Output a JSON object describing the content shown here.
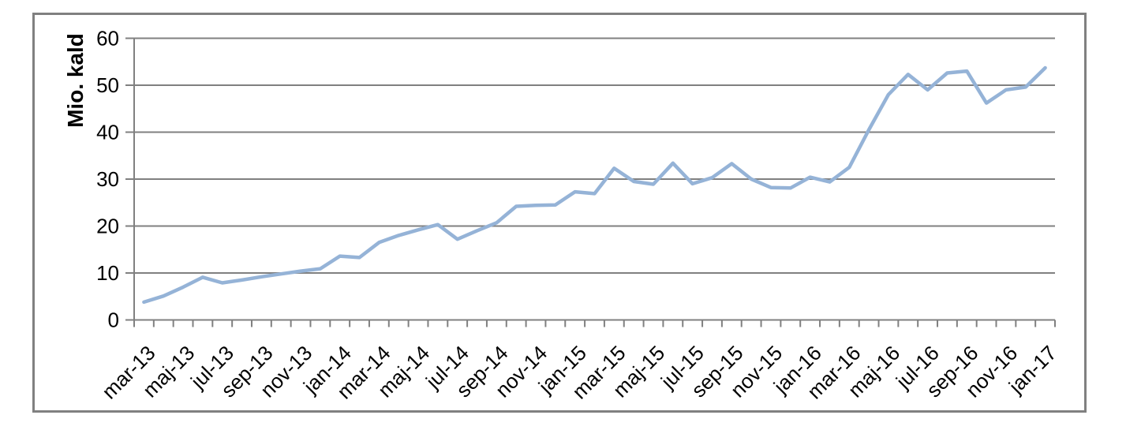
{
  "chart_data": {
    "type": "line",
    "title": "",
    "ylabel": "Mio. kald",
    "xlabel": "",
    "legend": "none",
    "grid": "horizontal",
    "ylim": [
      0,
      60
    ],
    "yticks": [
      0,
      10,
      20,
      30,
      40,
      50,
      60
    ],
    "x_label_every": 2,
    "x": [
      "mar-13",
      "apr-13",
      "maj-13",
      "jun-13",
      "jul-13",
      "aug-13",
      "sep-13",
      "okt-13",
      "nov-13",
      "dec-13",
      "jan-14",
      "feb-14",
      "mar-14",
      "apr-14",
      "maj-14",
      "jun-14",
      "jul-14",
      "aug-14",
      "sep-14",
      "okt-14",
      "nov-14",
      "dec-14",
      "jan-15",
      "feb-15",
      "mar-15",
      "apr-15",
      "maj-15",
      "jun-15",
      "jul-15",
      "aug-15",
      "sep-15",
      "okt-15",
      "nov-15",
      "dec-15",
      "jan-16",
      "feb-16",
      "mar-16",
      "apr-16",
      "maj-16",
      "jun-16",
      "jul-16",
      "aug-16",
      "sep-16",
      "okt-16",
      "nov-16",
      "dec-16",
      "jan-17"
    ],
    "values": [
      3.8,
      5.1,
      7.0,
      9.1,
      7.9,
      8.5,
      9.2,
      9.8,
      10.4,
      10.9,
      13.6,
      13.3,
      16.5,
      18.0,
      19.2,
      20.3,
      17.2,
      19.0,
      20.7,
      24.2,
      24.4,
      24.5,
      27.3,
      26.9,
      32.3,
      29.5,
      28.9,
      33.4,
      29.0,
      30.3,
      33.3,
      30.0,
      28.2,
      28.1,
      30.4,
      29.4,
      32.5,
      40.5,
      48.0,
      52.3,
      49.0,
      52.6,
      53.0,
      46.2,
      49.0,
      49.6,
      53.7
    ],
    "colors": {
      "line": "#95B3D7",
      "grid": "#808080",
      "axis": "#808080",
      "border": "#808080",
      "text": "#000000",
      "background": "#FFFFFF"
    }
  }
}
